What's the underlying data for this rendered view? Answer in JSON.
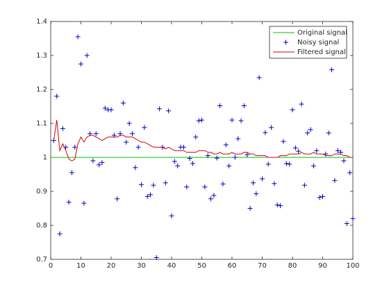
{
  "chart_data": {
    "type": "line",
    "xlim": [
      0,
      100
    ],
    "xticks": [
      0,
      10,
      20,
      30,
      40,
      50,
      60,
      70,
      80,
      90,
      100
    ],
    "ylim": [
      0.7,
      1.4
    ],
    "yticks": [
      0.7,
      0.8,
      0.9,
      1,
      1.1,
      1.2,
      1.3,
      1.4
    ],
    "grid": false,
    "legend": "top-right",
    "series": [
      {
        "name": "Original signal",
        "color": "#00c000",
        "marker": "none",
        "x": [
          0,
          100
        ],
        "values": [
          1,
          1
        ]
      },
      {
        "name": "Noisy signal",
        "color": "#0000c8",
        "marker": "+",
        "x": [
          1,
          2,
          3,
          4,
          5,
          6,
          7,
          8,
          9,
          10,
          11,
          12,
          13,
          14,
          15,
          16,
          17,
          18,
          19,
          20,
          21,
          22,
          23,
          24,
          25,
          26,
          27,
          28,
          29,
          30,
          31,
          32,
          33,
          34,
          35,
          36,
          37,
          38,
          39,
          40,
          41,
          42,
          43,
          44,
          45,
          46,
          47,
          48,
          49,
          50,
          51,
          52,
          53,
          54,
          55,
          56,
          57,
          58,
          59,
          60,
          61,
          62,
          63,
          64,
          65,
          66,
          67,
          68,
          69,
          70,
          71,
          72,
          73,
          74,
          75,
          76,
          77,
          78,
          79,
          80,
          81,
          82,
          83,
          84,
          85,
          86,
          87,
          88,
          89,
          90,
          91,
          92,
          93,
          94,
          95,
          96,
          97,
          98,
          99,
          100
        ],
        "values": [
          1.05,
          1.18,
          0.775,
          1.085,
          1.03,
          0.868,
          0.955,
          1.03,
          1.355,
          1.275,
          0.865,
          1.3,
          1.07,
          0.99,
          1.07,
          0.978,
          0.985,
          1.145,
          1.14,
          1.14,
          1.065,
          0.878,
          1.07,
          1.16,
          1.045,
          1.1,
          1.07,
          0.97,
          1.03,
          0.92,
          1.088,
          0.885,
          0.89,
          0.918,
          0.705,
          1.143,
          1.03,
          0.925,
          1.137,
          0.828,
          0.988,
          0.975,
          1.03,
          1.03,
          0.913,
          0.997,
          0.982,
          1.06,
          1.108,
          1.11,
          0.913,
          1.005,
          0.878,
          0.888,
          0.998,
          1.152,
          0.922,
          1.037,
          0.975,
          1.11,
          1.0,
          1.055,
          1.108,
          1.152,
          1.008,
          0.85,
          0.925,
          0.893,
          1.235,
          0.937,
          1.073,
          0.98,
          1.088,
          0.923,
          0.86,
          0.858,
          1.047,
          0.982,
          0.98,
          1.14,
          1.028,
          1.018,
          1.157,
          0.918,
          1.072,
          1.082,
          0.975,
          1.02,
          0.882,
          0.885,
          1.01,
          1.072,
          1.258,
          0.932,
          1.02,
          1.015,
          0.99,
          0.805,
          0.955,
          0.82
        ]
      },
      {
        "name": "Filtered signal",
        "color": "#d00000",
        "marker": "none",
        "x": [
          1,
          2,
          3,
          4,
          5,
          6,
          7,
          8,
          9,
          10,
          11,
          12,
          13,
          14,
          15,
          16,
          17,
          18,
          19,
          20,
          21,
          22,
          23,
          24,
          25,
          26,
          27,
          28,
          29,
          30,
          31,
          32,
          33,
          34,
          35,
          36,
          37,
          38,
          39,
          40,
          41,
          42,
          43,
          44,
          45,
          46,
          47,
          48,
          49,
          50,
          51,
          52,
          53,
          54,
          55,
          56,
          57,
          58,
          59,
          60,
          61,
          62,
          63,
          64,
          65,
          66,
          67,
          68,
          69,
          70,
          71,
          72,
          73,
          74,
          75,
          76,
          77,
          78,
          79,
          80,
          81,
          82,
          83,
          84,
          85,
          86,
          87,
          88,
          89,
          90,
          91,
          92,
          93,
          94,
          95,
          96,
          97,
          98,
          99,
          100
        ],
        "values": [
          1.05,
          1.11,
          1.02,
          1.04,
          1.02,
          0.995,
          0.99,
          0.995,
          1.04,
          1.06,
          1.045,
          1.06,
          1.065,
          1.065,
          1.06,
          1.055,
          1.05,
          1.055,
          1.06,
          1.06,
          1.06,
          1.06,
          1.065,
          1.065,
          1.06,
          1.06,
          1.06,
          1.055,
          1.05,
          1.045,
          1.045,
          1.04,
          1.035,
          1.03,
          1.03,
          1.03,
          1.03,
          1.025,
          1.03,
          1.025,
          1.02,
          1.02,
          1.02,
          1.02,
          1.015,
          1.015,
          1.015,
          1.015,
          1.02,
          1.02,
          1.02,
          1.015,
          1.015,
          1.01,
          1.01,
          1.015,
          1.01,
          1.01,
          1.01,
          1.015,
          1.01,
          1.01,
          1.01,
          1.015,
          1.015,
          1.01,
          1.01,
          1.005,
          1.005,
          1.005,
          1.005,
          1.0,
          1.0,
          1.0,
          1.0,
          1.005,
          1.005,
          1.005,
          1.01,
          1.01,
          1.01,
          1.01,
          1.015,
          1.01,
          1.01,
          1.01,
          1.015,
          1.01,
          1.01,
          1.01,
          1.005,
          1.005,
          1.005,
          1.01,
          1.01,
          1.01,
          1.005,
          1.005,
          1.0,
          1.0
        ]
      }
    ]
  }
}
